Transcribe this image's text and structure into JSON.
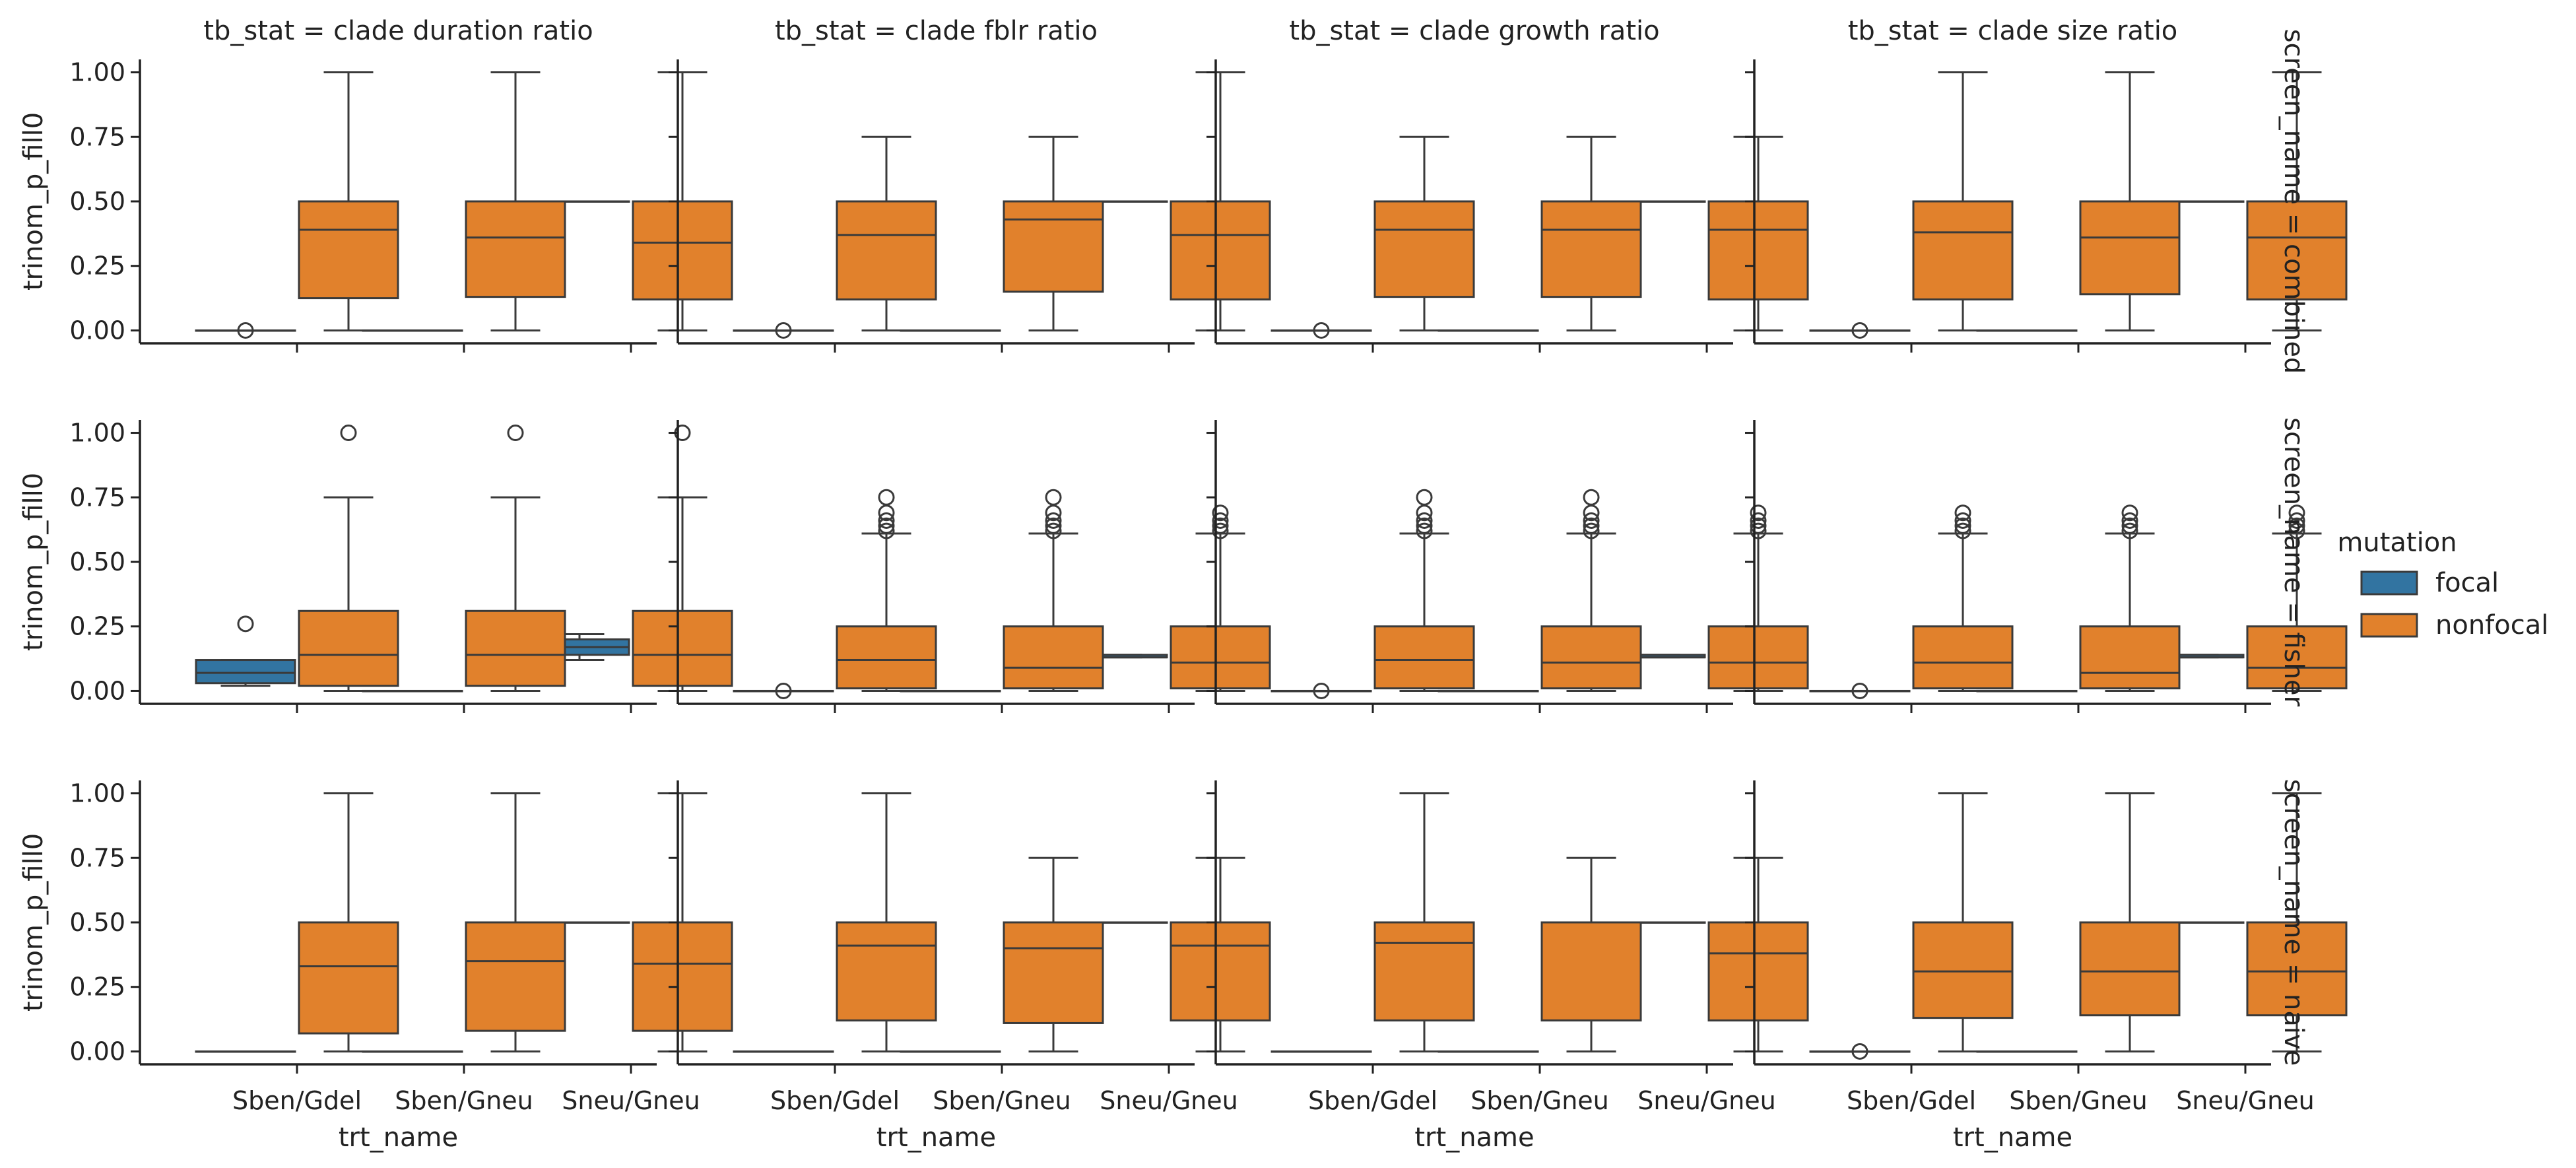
{
  "chart_data": {
    "type": "box",
    "x_categories": [
      "Sben/Gdel",
      "Sben/Gneu",
      "Sneu/Gneu"
    ],
    "hue_levels": [
      "focal",
      "nonfocal"
    ],
    "colors": {
      "focal": "#3274a1",
      "nonfocal": "#e1812c"
    },
    "xlabel": "trt_name",
    "ylabel": "trinom_p_fill0",
    "ylim": [
      -0.05,
      1.05
    ],
    "yticks": [
      "0.00",
      "0.25",
      "0.50",
      "0.75",
      "1.00"
    ],
    "ytick_values": [
      0,
      0.25,
      0.5,
      0.75,
      1.0
    ],
    "legend": {
      "title": "mutation",
      "position": "right",
      "labels": [
        "focal",
        "nonfocal"
      ]
    },
    "column_titles": [
      "tb_stat = clade duration ratio",
      "tb_stat = clade fblr ratio",
      "tb_stat = clade growth ratio",
      "tb_stat = clade size ratio"
    ],
    "row_titles": [
      "screen_name = combined",
      "screen_name = fisher",
      "screen_name = naive"
    ],
    "panels": [
      [
        {
          "focal": [
            {
              "q1": 0,
              "med": 0,
              "q3": 0,
              "wlo": 0,
              "whi": 0,
              "fliers": [
                0
              ]
            },
            {
              "q1": 0,
              "med": 0,
              "q3": 0,
              "wlo": 0,
              "whi": 0,
              "fliers": []
            },
            {
              "q1": 0.5,
              "med": 0.5,
              "q3": 0.5,
              "wlo": 0.5,
              "whi": 0.5,
              "fliers": []
            }
          ],
          "nonfocal": [
            {
              "q1": 0.125,
              "med": 0.39,
              "q3": 0.5,
              "wlo": 0,
              "whi": 1,
              "fliers": []
            },
            {
              "q1": 0.13,
              "med": 0.36,
              "q3": 0.5,
              "wlo": 0,
              "whi": 1,
              "fliers": []
            },
            {
              "q1": 0.12,
              "med": 0.34,
              "q3": 0.5,
              "wlo": 0,
              "whi": 1,
              "fliers": []
            }
          ]
        },
        {
          "focal": [
            {
              "q1": 0,
              "med": 0,
              "q3": 0,
              "wlo": 0,
              "whi": 0,
              "fliers": [
                0
              ]
            },
            {
              "q1": 0,
              "med": 0,
              "q3": 0,
              "wlo": 0,
              "whi": 0,
              "fliers": []
            },
            {
              "q1": 0.5,
              "med": 0.5,
              "q3": 0.5,
              "wlo": 0.5,
              "whi": 0.5,
              "fliers": []
            }
          ],
          "nonfocal": [
            {
              "q1": 0.12,
              "med": 0.37,
              "q3": 0.5,
              "wlo": 0,
              "whi": 0.75,
              "fliers": []
            },
            {
              "q1": 0.15,
              "med": 0.43,
              "q3": 0.5,
              "wlo": 0,
              "whi": 0.75,
              "fliers": []
            },
            {
              "q1": 0.12,
              "med": 0.37,
              "q3": 0.5,
              "wlo": 0,
              "whi": 1,
              "fliers": []
            }
          ]
        },
        {
          "focal": [
            {
              "q1": 0,
              "med": 0,
              "q3": 0,
              "wlo": 0,
              "whi": 0,
              "fliers": [
                0
              ]
            },
            {
              "q1": 0,
              "med": 0,
              "q3": 0,
              "wlo": 0,
              "whi": 0,
              "fliers": []
            },
            {
              "q1": 0.5,
              "med": 0.5,
              "q3": 0.5,
              "wlo": 0.5,
              "whi": 0.5,
              "fliers": []
            }
          ],
          "nonfocal": [
            {
              "q1": 0.13,
              "med": 0.39,
              "q3": 0.5,
              "wlo": 0,
              "whi": 0.75,
              "fliers": []
            },
            {
              "q1": 0.13,
              "med": 0.39,
              "q3": 0.5,
              "wlo": 0,
              "whi": 0.75,
              "fliers": []
            },
            {
              "q1": 0.12,
              "med": 0.39,
              "q3": 0.5,
              "wlo": 0,
              "whi": 0.75,
              "fliers": []
            }
          ]
        },
        {
          "focal": [
            {
              "q1": 0,
              "med": 0,
              "q3": 0,
              "wlo": 0,
              "whi": 0,
              "fliers": [
                0
              ]
            },
            {
              "q1": 0,
              "med": 0,
              "q3": 0,
              "wlo": 0,
              "whi": 0,
              "fliers": []
            },
            {
              "q1": 0.5,
              "med": 0.5,
              "q3": 0.5,
              "wlo": 0.5,
              "whi": 0.5,
              "fliers": []
            }
          ],
          "nonfocal": [
            {
              "q1": 0.12,
              "med": 0.38,
              "q3": 0.5,
              "wlo": 0,
              "whi": 1,
              "fliers": []
            },
            {
              "q1": 0.14,
              "med": 0.36,
              "q3": 0.5,
              "wlo": 0,
              "whi": 1,
              "fliers": []
            },
            {
              "q1": 0.12,
              "med": 0.36,
              "q3": 0.5,
              "wlo": 0,
              "whi": 1,
              "fliers": []
            }
          ]
        }
      ],
      [
        {
          "focal": [
            {
              "q1": 0.03,
              "med": 0.07,
              "q3": 0.12,
              "wlo": 0.02,
              "whi": 0.12,
              "fliers": [
                0.26
              ]
            },
            {
              "q1": 0,
              "med": 0,
              "q3": 0,
              "wlo": 0,
              "whi": 0,
              "fliers": []
            },
            {
              "q1": 0.14,
              "med": 0.17,
              "q3": 0.2,
              "wlo": 0.12,
              "whi": 0.22,
              "fliers": []
            }
          ],
          "nonfocal": [
            {
              "q1": 0.02,
              "med": 0.14,
              "q3": 0.31,
              "wlo": 0,
              "whi": 0.75,
              "fliers": [
                1.0
              ]
            },
            {
              "q1": 0.02,
              "med": 0.14,
              "q3": 0.31,
              "wlo": 0,
              "whi": 0.75,
              "fliers": [
                1.0
              ]
            },
            {
              "q1": 0.02,
              "med": 0.14,
              "q3": 0.31,
              "wlo": 0,
              "whi": 0.75,
              "fliers": [
                1.0
              ]
            }
          ]
        },
        {
          "focal": [
            {
              "q1": 0,
              "med": 0,
              "q3": 0,
              "wlo": 0,
              "whi": 0,
              "fliers": [
                0
              ]
            },
            {
              "q1": 0,
              "med": 0,
              "q3": 0,
              "wlo": 0,
              "whi": 0,
              "fliers": []
            },
            {
              "q1": 0.13,
              "med": 0.13,
              "q3": 0.14,
              "wlo": 0.13,
              "whi": 0.14,
              "fliers": []
            }
          ],
          "nonfocal": [
            {
              "q1": 0.01,
              "med": 0.12,
              "q3": 0.25,
              "wlo": 0,
              "whi": 0.61,
              "fliers": [
                0.62,
                0.64,
                0.66,
                0.69,
                0.75
              ]
            },
            {
              "q1": 0.01,
              "med": 0.09,
              "q3": 0.25,
              "wlo": 0,
              "whi": 0.61,
              "fliers": [
                0.62,
                0.64,
                0.66,
                0.69,
                0.75
              ]
            },
            {
              "q1": 0.01,
              "med": 0.11,
              "q3": 0.25,
              "wlo": 0,
              "whi": 0.61,
              "fliers": [
                0.62,
                0.64,
                0.66,
                0.69
              ]
            }
          ]
        },
        {
          "focal": [
            {
              "q1": 0,
              "med": 0,
              "q3": 0,
              "wlo": 0,
              "whi": 0,
              "fliers": [
                0
              ]
            },
            {
              "q1": 0,
              "med": 0,
              "q3": 0,
              "wlo": 0,
              "whi": 0,
              "fliers": []
            },
            {
              "q1": 0.13,
              "med": 0.13,
              "q3": 0.14,
              "wlo": 0.13,
              "whi": 0.14,
              "fliers": []
            }
          ],
          "nonfocal": [
            {
              "q1": 0.01,
              "med": 0.12,
              "q3": 0.25,
              "wlo": 0,
              "whi": 0.61,
              "fliers": [
                0.62,
                0.64,
                0.66,
                0.69,
                0.75
              ]
            },
            {
              "q1": 0.01,
              "med": 0.11,
              "q3": 0.25,
              "wlo": 0,
              "whi": 0.61,
              "fliers": [
                0.62,
                0.64,
                0.66,
                0.69,
                0.75
              ]
            },
            {
              "q1": 0.01,
              "med": 0.11,
              "q3": 0.25,
              "wlo": 0,
              "whi": 0.61,
              "fliers": [
                0.62,
                0.64,
                0.66,
                0.69
              ]
            }
          ]
        },
        {
          "focal": [
            {
              "q1": 0,
              "med": 0,
              "q3": 0,
              "wlo": 0,
              "whi": 0,
              "fliers": [
                0
              ]
            },
            {
              "q1": 0,
              "med": 0,
              "q3": 0,
              "wlo": 0,
              "whi": 0,
              "fliers": []
            },
            {
              "q1": 0.13,
              "med": 0.13,
              "q3": 0.14,
              "wlo": 0.13,
              "whi": 0.14,
              "fliers": []
            }
          ],
          "nonfocal": [
            {
              "q1": 0.01,
              "med": 0.11,
              "q3": 0.25,
              "wlo": 0,
              "whi": 0.61,
              "fliers": [
                0.62,
                0.64,
                0.66,
                0.69
              ]
            },
            {
              "q1": 0.01,
              "med": 0.07,
              "q3": 0.25,
              "wlo": 0,
              "whi": 0.61,
              "fliers": [
                0.62,
                0.64,
                0.66,
                0.69
              ]
            },
            {
              "q1": 0.01,
              "med": 0.09,
              "q3": 0.25,
              "wlo": 0,
              "whi": 0.61,
              "fliers": [
                0.62,
                0.64,
                0.66,
                0.69
              ]
            }
          ]
        }
      ],
      [
        {
          "focal": [
            {
              "q1": 0,
              "med": 0,
              "q3": 0,
              "wlo": 0,
              "whi": 0,
              "fliers": []
            },
            {
              "q1": 0,
              "med": 0,
              "q3": 0,
              "wlo": 0,
              "whi": 0,
              "fliers": []
            },
            {
              "q1": 0.5,
              "med": 0.5,
              "q3": 0.5,
              "wlo": 0.5,
              "whi": 0.5,
              "fliers": []
            }
          ],
          "nonfocal": [
            {
              "q1": 0.07,
              "med": 0.33,
              "q3": 0.5,
              "wlo": 0,
              "whi": 1,
              "fliers": []
            },
            {
              "q1": 0.08,
              "med": 0.35,
              "q3": 0.5,
              "wlo": 0,
              "whi": 1,
              "fliers": []
            },
            {
              "q1": 0.08,
              "med": 0.34,
              "q3": 0.5,
              "wlo": 0,
              "whi": 1,
              "fliers": []
            }
          ]
        },
        {
          "focal": [
            {
              "q1": 0,
              "med": 0,
              "q3": 0,
              "wlo": 0,
              "whi": 0,
              "fliers": []
            },
            {
              "q1": 0,
              "med": 0,
              "q3": 0,
              "wlo": 0,
              "whi": 0,
              "fliers": []
            },
            {
              "q1": 0.5,
              "med": 0.5,
              "q3": 0.5,
              "wlo": 0.5,
              "whi": 0.5,
              "fliers": []
            }
          ],
          "nonfocal": [
            {
              "q1": 0.12,
              "med": 0.41,
              "q3": 0.5,
              "wlo": 0,
              "whi": 1,
              "fliers": []
            },
            {
              "q1": 0.11,
              "med": 0.4,
              "q3": 0.5,
              "wlo": 0,
              "whi": 0.75,
              "fliers": []
            },
            {
              "q1": 0.12,
              "med": 0.41,
              "q3": 0.5,
              "wlo": 0,
              "whi": 0.75,
              "fliers": []
            }
          ]
        },
        {
          "focal": [
            {
              "q1": 0,
              "med": 0,
              "q3": 0,
              "wlo": 0,
              "whi": 0,
              "fliers": []
            },
            {
              "q1": 0,
              "med": 0,
              "q3": 0,
              "wlo": 0,
              "whi": 0,
              "fliers": []
            },
            {
              "q1": 0.5,
              "med": 0.5,
              "q3": 0.5,
              "wlo": 0.5,
              "whi": 0.5,
              "fliers": []
            }
          ],
          "nonfocal": [
            {
              "q1": 0.12,
              "med": 0.42,
              "q3": 0.5,
              "wlo": 0,
              "whi": 1,
              "fliers": []
            },
            {
              "q1": 0.12,
              "med": 0.12,
              "q3": 0.5,
              "wlo": 0,
              "whi": 0.75,
              "fliers": []
            },
            {
              "q1": 0.12,
              "med": 0.38,
              "q3": 0.5,
              "wlo": 0,
              "whi": 0.75,
              "fliers": []
            }
          ]
        },
        {
          "focal": [
            {
              "q1": 0,
              "med": 0,
              "q3": 0,
              "wlo": 0,
              "whi": 0,
              "fliers": [
                0
              ]
            },
            {
              "q1": 0,
              "med": 0,
              "q3": 0,
              "wlo": 0,
              "whi": 0,
              "fliers": []
            },
            {
              "q1": 0.5,
              "med": 0.5,
              "q3": 0.5,
              "wlo": 0.5,
              "whi": 0.5,
              "fliers": []
            }
          ],
          "nonfocal": [
            {
              "q1": 0.13,
              "med": 0.31,
              "q3": 0.5,
              "wlo": 0,
              "whi": 1,
              "fliers": []
            },
            {
              "q1": 0.14,
              "med": 0.31,
              "q3": 0.5,
              "wlo": 0,
              "whi": 1,
              "fliers": []
            },
            {
              "q1": 0.14,
              "med": 0.31,
              "q3": 0.5,
              "wlo": 0,
              "whi": 1,
              "fliers": []
            }
          ]
        }
      ]
    ]
  }
}
